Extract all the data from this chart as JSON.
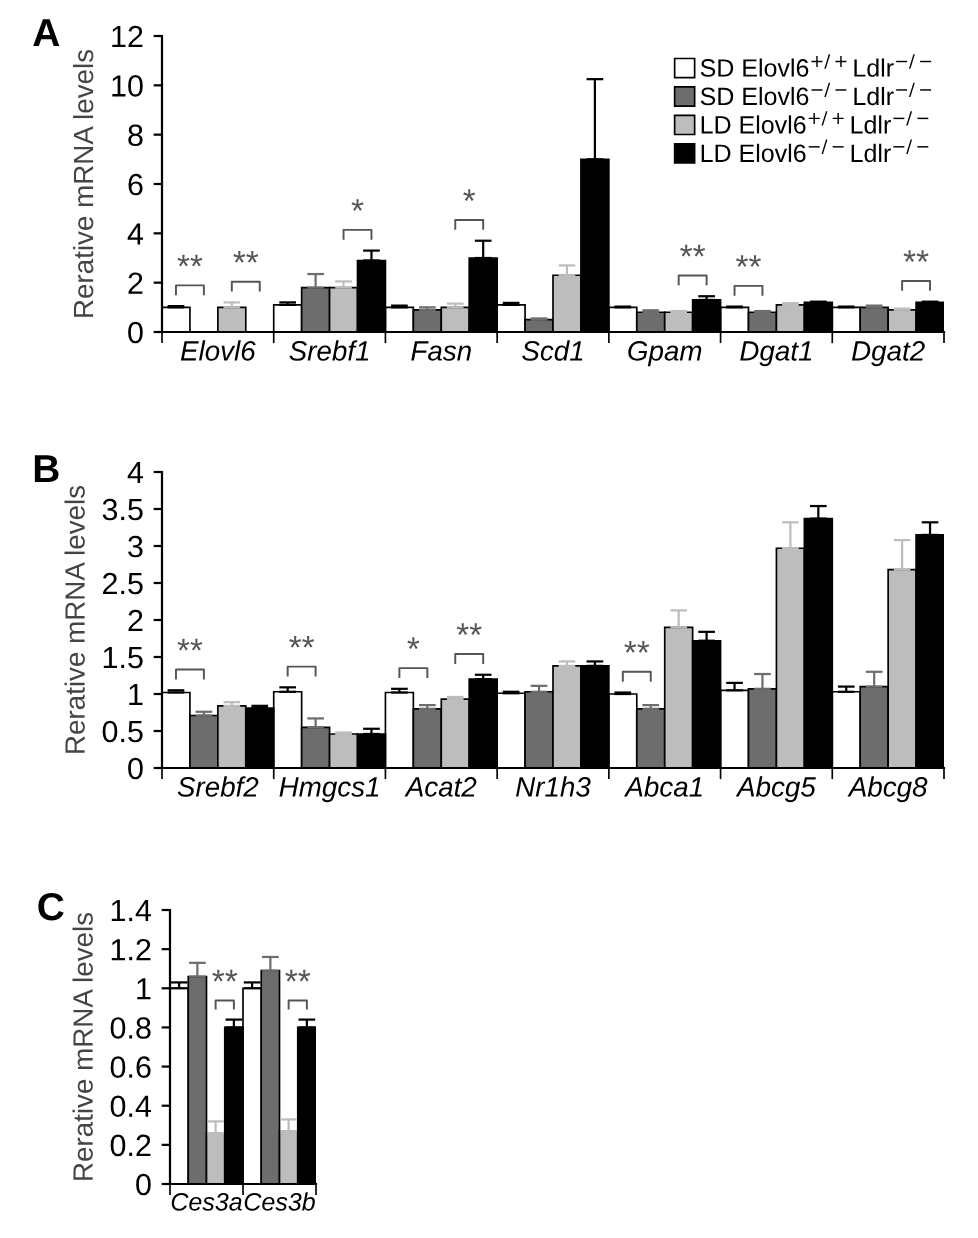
{
  "chart_data": [
    {
      "type": "bar",
      "title": "A",
      "ylabel": "Rerative mRNA levels",
      "categories": [
        "Elovl6",
        "Srebf1",
        "Fasn",
        "Scd1",
        "Gpam",
        "Dgat1",
        "Dgat2"
      ],
      "series": [
        {
          "name": "SD Elovl6$^{+/+}$Ldlr$^{−/−}$",
          "color": "#ffffff",
          "values": [
            1.0,
            1.1,
            1.0,
            1.1,
            1.0,
            1.0,
            1.0
          ],
          "errors": [
            0.05,
            0.1,
            0.07,
            0.08,
            0.03,
            0.03,
            0.03
          ]
        },
        {
          "name": "SD Elovl6$^{−/−}$Ldlr$^{−/−}$",
          "color": "#6d6d6d",
          "values": [
            null,
            1.8,
            0.9,
            0.5,
            0.8,
            0.8,
            1.0
          ],
          "errors": [
            null,
            0.55,
            0.1,
            0.05,
            0.08,
            0.05,
            0.07
          ]
        },
        {
          "name": "LD Elovl6$^{+/+}$Ldlr$^{−/−}$",
          "color": "#bdbdbd",
          "values": [
            1.0,
            1.8,
            1.0,
            2.3,
            0.8,
            1.1,
            0.9
          ],
          "errors": [
            0.2,
            0.25,
            0.15,
            0.4,
            0.05,
            0.07,
            0.05
          ]
        },
        {
          "name": "LD Elovl6$^{−/−}$Ldlr$^{−/−}$",
          "color": "#000000",
          "values": [
            null,
            2.9,
            3.0,
            7.0,
            1.3,
            1.2,
            1.2
          ],
          "errors": [
            null,
            0.4,
            0.7,
            3.25,
            0.15,
            0.03,
            0.03
          ]
        }
      ],
      "ylim": [
        0,
        12
      ],
      "yticks": [
        0,
        2,
        4,
        6,
        8,
        10,
        12
      ],
      "legend": "top right",
      "grid": false,
      "annotations": [
        "**",
        "**",
        "*",
        "*",
        "**",
        "**",
        "**"
      ]
    },
    {
      "type": "bar",
      "title": "B",
      "ylabel": "Rerative mRNA levels",
      "categories": [
        "Srebf2",
        "Hmgcs1",
        "Acat2",
        "Nr1h3",
        "Abca1",
        "Abcg5",
        "Abcg8"
      ],
      "series": [
        {
          "color": "#ffffff",
          "values": [
            1.02,
            1.03,
            1.02,
            1.01,
            1.0,
            1.05,
            1.03
          ],
          "errors": [
            0.03,
            0.06,
            0.05,
            0.02,
            0.02,
            0.1,
            0.07
          ]
        },
        {
          "color": "#6d6d6d",
          "values": [
            0.71,
            0.55,
            0.8,
            1.03,
            0.8,
            1.07,
            1.1
          ],
          "errors": [
            0.05,
            0.12,
            0.05,
            0.08,
            0.05,
            0.2,
            0.2
          ]
        },
        {
          "color": "#bdbdbd",
          "values": [
            0.84,
            0.46,
            0.93,
            1.38,
            1.9,
            2.97,
            2.68
          ],
          "errors": [
            0.05,
            0.02,
            0.03,
            0.06,
            0.23,
            0.35,
            0.4
          ]
        },
        {
          "color": "#000000",
          "values": [
            0.81,
            0.46,
            1.2,
            1.38,
            1.72,
            3.37,
            3.15
          ],
          "errors": [
            0.03,
            0.07,
            0.06,
            0.06,
            0.12,
            0.17,
            0.17
          ]
        }
      ],
      "ylim": [
        0,
        4
      ],
      "yticks": [
        0,
        0.5,
        1,
        1.5,
        2,
        2.5,
        3,
        3.5,
        4
      ],
      "grid": false,
      "annotations": [
        "**",
        "**",
        "*",
        "**",
        "**"
      ]
    },
    {
      "type": "bar",
      "title": "C",
      "ylabel": "Rerative mRNA levels",
      "categories": [
        "Ces3a",
        "Ces3b"
      ],
      "series": [
        {
          "color": "#ffffff",
          "values": [
            1.0,
            1.0
          ],
          "errors": [
            0.03,
            0.03
          ]
        },
        {
          "color": "#6d6d6d",
          "values": [
            1.06,
            1.09
          ],
          "errors": [
            0.07,
            0.07
          ]
        },
        {
          "color": "#bdbdbd",
          "values": [
            0.26,
            0.27
          ],
          "errors": [
            0.06,
            0.06
          ]
        },
        {
          "color": "#000000",
          "values": [
            0.8,
            0.8
          ],
          "errors": [
            0.04,
            0.04
          ]
        }
      ],
      "ylim": [
        0,
        1.4
      ],
      "yticks": [
        0,
        0.2,
        0.4,
        0.6,
        0.8,
        1,
        1.2,
        1.4
      ],
      "grid": false,
      "annotations": [
        "**",
        "**"
      ]
    }
  ]
}
